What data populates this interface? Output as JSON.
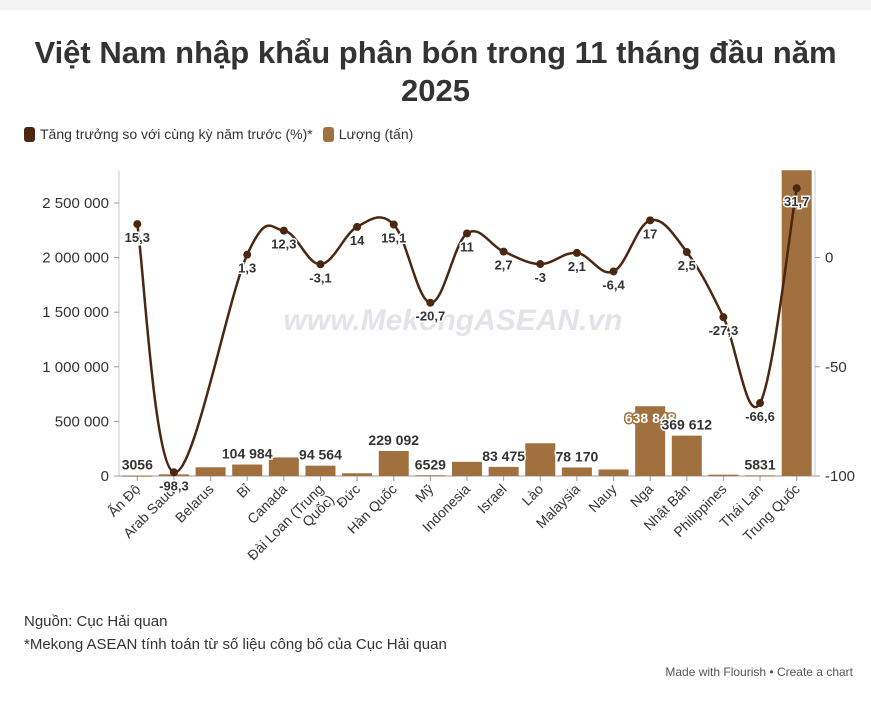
{
  "title": "Việt Nam nhập khẩu phân bón trong 11 tháng đầu năm 2025",
  "watermark": "www.MekongASEAN.vn",
  "legend": {
    "line_label": "Tăng trưởng so với cùng kỳ năm trước (%)*",
    "bar_label": "Lượng (tấn)"
  },
  "colors": {
    "bar": "#a0703f",
    "line": "#4a2710",
    "text": "#333333"
  },
  "footer": {
    "source": "Nguồn: Cục Hải quan",
    "note": "*Mekong ASEAN tính toán từ số liệu công bố của Cục Hải quan",
    "made_with": "Made with Flourish",
    "separator": "•",
    "create": "Create a chart"
  },
  "chart_data": {
    "type": "bar",
    "categories": [
      "Ấn Độ",
      "Arab Saudi",
      "Belarus",
      "Bỉ",
      "Canada",
      "Đài Loan (Trung Quốc)",
      "Đức",
      "Hàn Quốc",
      "Mỹ",
      "Indonesia",
      "Israel",
      "Lào",
      "Malaysia",
      "Nauy",
      "Nga",
      "Nhật Bản",
      "Philippines",
      "Thái Lan",
      "Trung Quốc"
    ],
    "bar_values": [
      3056,
      15000,
      80000,
      104984,
      170000,
      94564,
      25000,
      229092,
      6529,
      130000,
      83475,
      300000,
      78170,
      60000,
      638848,
      369612,
      12000,
      5831,
      2800000
    ],
    "bar_labels": [
      "3056",
      "",
      "",
      "104 984",
      "",
      "94 564",
      "",
      "229 092",
      "6529",
      "",
      "83 475",
      "",
      "78 170",
      "",
      "638 848",
      "369 612",
      "",
      "5831",
      ""
    ],
    "growth_values": [
      15.3,
      -98.3,
      null,
      1.3,
      12.3,
      -3.1,
      14,
      15.1,
      -20.7,
      11,
      2.7,
      -3,
      2.1,
      -6.4,
      17,
      2.5,
      -27.3,
      -66.6,
      31.7
    ],
    "growth_labels": [
      "15,3",
      "-98,3",
      "",
      "1,3",
      "12,3",
      "-3,1",
      "14",
      "15,1",
      "-20,7",
      "11",
      "2,7",
      "-3",
      "2,1",
      "-6,4",
      "17",
      "2,5",
      "-27,3",
      "-66,6",
      "31,7"
    ],
    "y_left": {
      "min": 0,
      "max": 2800000,
      "ticks": [
        0,
        500000,
        1000000,
        1500000,
        2000000,
        2500000
      ],
      "tick_labels": [
        "0",
        "500 000",
        "1 000 000",
        "1 500 000",
        "2 000 000",
        "2 500 000"
      ]
    },
    "y_right": {
      "min": -100,
      "max": 40,
      "ticks": [
        -100,
        -50,
        0
      ],
      "tick_labels": [
        "-100",
        "-50",
        "0"
      ]
    },
    "grid": false,
    "legend_position": "top-left"
  }
}
